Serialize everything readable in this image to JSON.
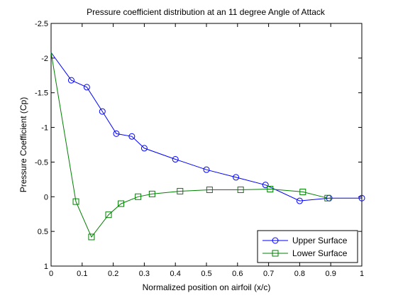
{
  "chart_data": {
    "type": "line",
    "title": "Pressure coefficient distribution at an 11 degree Angle of Attack",
    "xlabel": "Normalized position on airfoil (x/c)",
    "ylabel": "Pressure Coefficient (Cp)",
    "xlim": [
      0,
      1
    ],
    "ylim": [
      -2.5,
      1
    ],
    "y_reversed": true,
    "x_ticks": [
      "0",
      "0.1",
      "0.2",
      "0.3",
      "0.4",
      "0.5",
      "0.6",
      "0.7",
      "0.8",
      "0.9",
      "1"
    ],
    "y_ticks": [
      "-2.5",
      "-2",
      "-1.5",
      "-1",
      "-0.5",
      "0",
      "0.5",
      "1"
    ],
    "grid": false,
    "legend_position": "bottom-right",
    "series": [
      {
        "name": "Upper Surface",
        "color": "#0000ff",
        "marker": "circle",
        "x": [
          0,
          0.065,
          0.115,
          0.165,
          0.21,
          0.26,
          0.3,
          0.4,
          0.5,
          0.595,
          0.69,
          0.8,
          0.895,
          1.0
        ],
        "y": [
          -2.08,
          -1.68,
          -1.58,
          -1.23,
          -0.91,
          -0.87,
          -0.7,
          -0.54,
          -0.39,
          -0.28,
          -0.17,
          0.06,
          0.02,
          0.02
        ]
      },
      {
        "name": "Lower Surface",
        "color": "#008000",
        "marker": "square",
        "x": [
          0,
          0.08,
          0.13,
          0.185,
          0.225,
          0.28,
          0.325,
          0.415,
          0.51,
          0.61,
          0.705,
          0.81,
          0.89
        ],
        "y": [
          -2.08,
          0.07,
          0.58,
          0.26,
          0.1,
          0.0,
          -0.04,
          -0.08,
          -0.1,
          -0.1,
          -0.11,
          -0.07,
          0.02
        ]
      }
    ]
  }
}
